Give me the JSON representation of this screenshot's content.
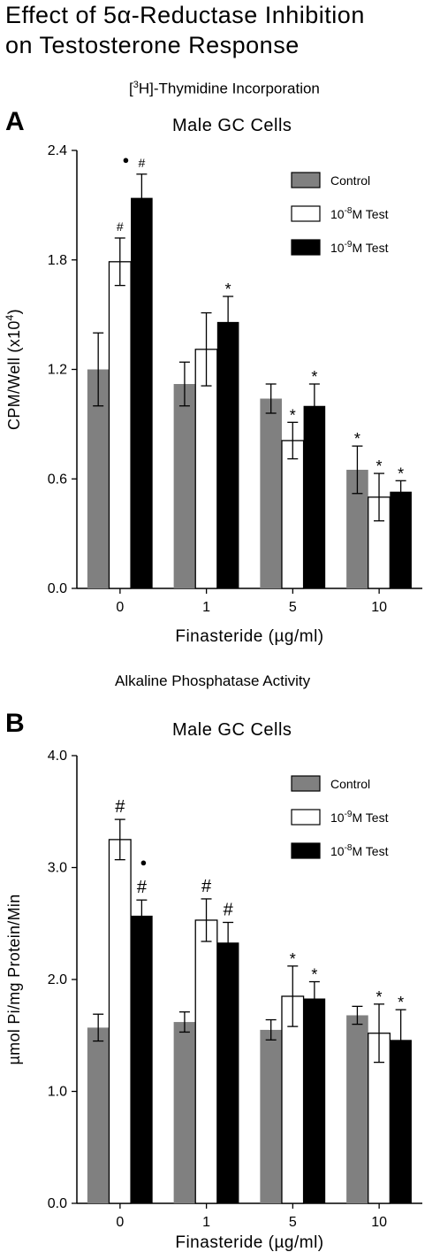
{
  "figure": {
    "title_line1": "Effect of 5α-Reductase Inhibition",
    "title_line2": "on Testosterone Response"
  },
  "chart_data": [
    {
      "type": "bar",
      "panel": "A",
      "subtitle_pre": "[",
      "subtitle_sup": "3",
      "subtitle_post": "H]-Thymidine Incorporation",
      "title": "Male GC Cells",
      "xlabel": "Finasteride (µg/ml)",
      "ylabel": "CPM/Well (x10",
      "ylabel_sup": "4",
      "ylabel_post": ")",
      "ylim": [
        0,
        2.4
      ],
      "yticks": [
        "0.0",
        "0.6",
        "1.2",
        "1.8",
        "2.4"
      ],
      "categories": [
        "0",
        "1",
        "5",
        "10"
      ],
      "legend_position": "top-right",
      "series": [
        {
          "name_pre": "Control",
          "name_sup": "",
          "name_post": "",
          "color": "#808080",
          "values": [
            1.2,
            1.12,
            1.04,
            0.65
          ],
          "errors": [
            0.2,
            0.12,
            0.08,
            0.13
          ],
          "markers": [
            "",
            "",
            "",
            "*"
          ]
        },
        {
          "name_pre": "10",
          "name_sup": "-8",
          "name_post": "M Test",
          "color": "#ffffff",
          "values": [
            1.79,
            1.31,
            0.81,
            0.5
          ],
          "errors": [
            0.13,
            0.2,
            0.1,
            0.13
          ],
          "markers": [
            "#",
            "",
            "*",
            "*"
          ]
        },
        {
          "name_pre": "10",
          "name_sup": "-9",
          "name_post": "M Test",
          "color": "#000000",
          "values": [
            2.14,
            1.46,
            1.0,
            0.53
          ],
          "errors": [
            0.13,
            0.14,
            0.12,
            0.06
          ],
          "markers": [
            "#",
            "*",
            "*",
            "*"
          ]
        }
      ],
      "extra_marker": {
        "text": "●",
        "category": 0
      }
    },
    {
      "type": "bar",
      "panel": "B",
      "subtitle_pre": "Alkaline Phosphatase Activity",
      "subtitle_sup": "",
      "subtitle_post": "",
      "title": "Male GC Cells",
      "xlabel": "Finasteride (µg/ml)",
      "ylabel": "µmol Pi/mg Protein/Min",
      "ylabel_sup": "",
      "ylabel_post": "",
      "ylim": [
        0,
        4.0
      ],
      "yticks": [
        "0.0",
        "1.0",
        "2.0",
        "3.0",
        "4.0"
      ],
      "categories": [
        "0",
        "1",
        "5",
        "10"
      ],
      "legend_position": "top-right",
      "series": [
        {
          "name_pre": "Control",
          "name_sup": "",
          "name_post": "",
          "color": "#808080",
          "values": [
            1.57,
            1.62,
            1.55,
            1.68
          ],
          "errors": [
            0.12,
            0.09,
            0.09,
            0.08
          ],
          "markers": [
            "",
            "",
            "",
            ""
          ]
        },
        {
          "name_pre": "10",
          "name_sup": "-9",
          "name_post": "M Test",
          "color": "#ffffff",
          "values": [
            3.25,
            2.53,
            1.85,
            1.52
          ],
          "errors": [
            0.18,
            0.19,
            0.27,
            0.26
          ],
          "markers": [
            "#",
            "#",
            "*",
            "*"
          ]
        },
        {
          "name_pre": "10",
          "name_sup": "-8",
          "name_post": "M Test",
          "color": "#000000",
          "values": [
            2.57,
            2.33,
            1.83,
            1.46
          ],
          "errors": [
            0.14,
            0.18,
            0.15,
            0.27
          ],
          "markers": [
            "#",
            "#",
            "*",
            "*"
          ]
        }
      ],
      "extra_marker": {
        "text": "●",
        "category": 0
      }
    }
  ]
}
